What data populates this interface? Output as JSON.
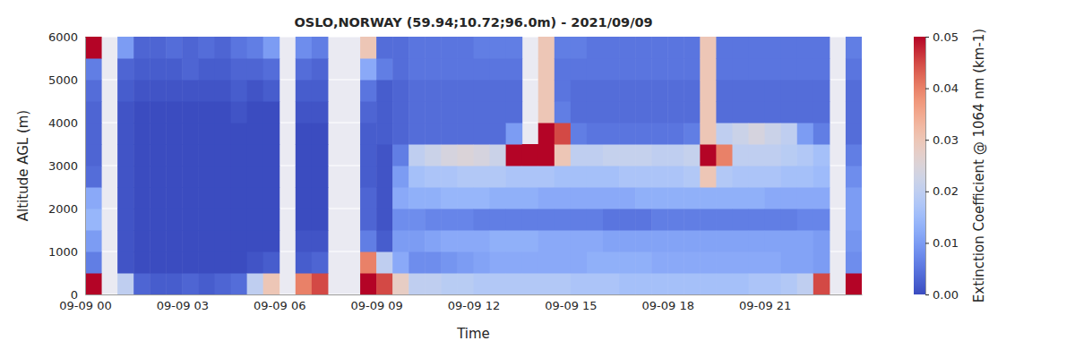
{
  "chart_data": {
    "type": "heatmap",
    "title": "OSLO,NORWAY (59.94;10.72;96.0m) - 2021/09/09",
    "x_label": "Time",
    "y_label": "Altitude AGL (m)",
    "grid": true,
    "x": [
      0,
      0.5,
      1,
      1.5,
      2,
      2.5,
      3,
      3.5,
      4,
      4.5,
      5,
      5.5,
      6,
      6.5,
      7,
      7.5,
      8,
      8.5,
      9,
      9.5,
      10,
      10.5,
      11,
      11.5,
      12,
      12.5,
      13,
      13.5,
      14,
      14.5,
      15,
      15.5,
      16,
      16.5,
      17,
      17.5,
      18,
      18.5,
      19,
      19.5,
      20,
      20.5,
      21,
      21.5,
      22,
      22.5,
      23,
      23.5
    ],
    "y": [
      0,
      500,
      1000,
      1500,
      2000,
      2500,
      3000,
      3500,
      4000,
      4500,
      5000,
      5500
    ],
    "xlim": [
      0,
      24
    ],
    "xticks": [
      {
        "value": 0,
        "label": "09-09 00"
      },
      {
        "value": 3,
        "label": "09-09 03"
      },
      {
        "value": 6,
        "label": "09-09 06"
      },
      {
        "value": 9,
        "label": "09-09 09"
      },
      {
        "value": 12,
        "label": "09-09 12"
      },
      {
        "value": 15,
        "label": "09-09 15"
      },
      {
        "value": 18,
        "label": "09-09 18"
      },
      {
        "value": 21,
        "label": "09-09 21"
      }
    ],
    "ylim": [
      0,
      6000
    ],
    "yticks": [
      0,
      1000,
      2000,
      3000,
      4000,
      5000,
      6000
    ],
    "values": [
      [
        0.05,
        0.006,
        0.01,
        0.014,
        0.012,
        0.004,
        0.003,
        0.003,
        0.003,
        0.004,
        0.006,
        0.05
      ],
      [
        null,
        null,
        null,
        null,
        null,
        null,
        null,
        null,
        null,
        null,
        null,
        null
      ],
      [
        0.02,
        0.001,
        0.001,
        0.001,
        0.001,
        0.001,
        0.001,
        0.001,
        0.001,
        0.002,
        0.003,
        0.01
      ],
      [
        0.003,
        0,
        0,
        0,
        0,
        0,
        0,
        0,
        0,
        0.001,
        0.002,
        0.003
      ],
      [
        0.002,
        0,
        0,
        0,
        0,
        0,
        0,
        0,
        0,
        0.001,
        0.002,
        0.003
      ],
      [
        0.002,
        0,
        0,
        0,
        0,
        0,
        0,
        0,
        0,
        0.001,
        0.002,
        0.004
      ],
      [
        0.003,
        0,
        0,
        0,
        0,
        0,
        0,
        0,
        0,
        0.001,
        0.003,
        0.003
      ],
      [
        0.002,
        0,
        0,
        0,
        0,
        0,
        0,
        0,
        0,
        0.001,
        0.002,
        0.004
      ],
      [
        0.003,
        0,
        0,
        0,
        0,
        0,
        0,
        0,
        0,
        0.001,
        0.002,
        0.003
      ],
      [
        0.004,
        0,
        0,
        0,
        0,
        0,
        0,
        0,
        0.001,
        0.002,
        0.003,
        0.005
      ],
      [
        0.02,
        0.001,
        0,
        0,
        0,
        0,
        0,
        0,
        0,
        0.001,
        0.003,
        0.006
      ],
      [
        0.03,
        0.002,
        0,
        0,
        0,
        0,
        0,
        0,
        0,
        0.002,
        0.004,
        0.01
      ],
      [
        null,
        null,
        null,
        null,
        null,
        null,
        null,
        null,
        null,
        null,
        null,
        null
      ],
      [
        0.04,
        0.002,
        0.001,
        0,
        0,
        0,
        0,
        0,
        0.001,
        0.002,
        0.004,
        0.008
      ],
      [
        0.045,
        0.003,
        0.001,
        0,
        0,
        0,
        0,
        0,
        0.001,
        0.002,
        0.003,
        0.006
      ],
      [
        null,
        null,
        null,
        null,
        null,
        null,
        null,
        null,
        null,
        null,
        null,
        null
      ],
      [
        null,
        null,
        null,
        null,
        null,
        null,
        null,
        null,
        null,
        null,
        null,
        null
      ],
      [
        0.05,
        0.04,
        0.006,
        0.003,
        0.003,
        0.002,
        0.002,
        0.002,
        0.003,
        0.005,
        0.012,
        0.03
      ],
      [
        0.045,
        0.02,
        0.002,
        0.001,
        0.001,
        0.001,
        0.001,
        0.002,
        0.002,
        0.002,
        0.006,
        0.004
      ],
      [
        0.028,
        0.012,
        0.01,
        0.008,
        0.012,
        0.01,
        0.006,
        0.003,
        0.003,
        0.003,
        0.004,
        0.004
      ],
      [
        0.02,
        0.008,
        0.01,
        0.008,
        0.013,
        0.016,
        0.02,
        0.004,
        0.004,
        0.004,
        0.005,
        0.005
      ],
      [
        0.02,
        0.008,
        0.011,
        0.007,
        0.013,
        0.017,
        0.022,
        0.004,
        0.004,
        0.004,
        0.005,
        0.005
      ],
      [
        0.019,
        0.009,
        0.012,
        0.007,
        0.014,
        0.017,
        0.024,
        0.004,
        0.004,
        0.004,
        0.005,
        0.005
      ],
      [
        0.019,
        0.01,
        0.012,
        0.007,
        0.014,
        0.018,
        0.025,
        0.004,
        0.004,
        0.004,
        0.005,
        0.005
      ],
      [
        0.018,
        0.011,
        0.012,
        0.006,
        0.014,
        0.018,
        0.024,
        0.004,
        0.004,
        0.004,
        0.005,
        0.006
      ],
      [
        0.018,
        0.012,
        0.013,
        0.006,
        0.013,
        0.018,
        0.022,
        0.004,
        0.004,
        0.004,
        0.005,
        0.006
      ],
      [
        0.018,
        0.012,
        0.013,
        0.006,
        0.013,
        0.017,
        0.05,
        0.01,
        0.004,
        0.004,
        0.005,
        0.006
      ],
      [
        0.018,
        0.012,
        0.013,
        0.006,
        0.013,
        0.017,
        0.05,
        null,
        null,
        null,
        null,
        null
      ],
      [
        0.018,
        0.012,
        0.012,
        0.006,
        0.012,
        0.017,
        0.05,
        0.05,
        0.03,
        0.03,
        0.03,
        0.03
      ],
      [
        0.018,
        0.012,
        0.012,
        0.006,
        0.012,
        0.016,
        0.03,
        0.045,
        0.006,
        0.005,
        0.005,
        0.006
      ],
      [
        0.017,
        0.012,
        0.012,
        0.006,
        0.012,
        0.016,
        0.02,
        0.006,
        0.004,
        0.004,
        0.005,
        0.006
      ],
      [
        0.017,
        0.013,
        0.012,
        0.006,
        0.012,
        0.016,
        0.02,
        0.005,
        0.004,
        0.004,
        0.005,
        0.005
      ],
      [
        0.017,
        0.013,
        0.011,
        0.005,
        0.012,
        0.016,
        0.021,
        0.005,
        0.004,
        0.004,
        0.005,
        0.005
      ],
      [
        0.016,
        0.013,
        0.011,
        0.005,
        0.012,
        0.017,
        0.021,
        0.005,
        0.004,
        0.004,
        0.005,
        0.005
      ],
      [
        0.016,
        0.013,
        0.011,
        0.005,
        0.013,
        0.017,
        0.021,
        0.005,
        0.004,
        0.004,
        0.005,
        0.005
      ],
      [
        0.016,
        0.012,
        0.011,
        0.006,
        0.013,
        0.017,
        0.02,
        0.005,
        0.004,
        0.004,
        0.005,
        0.005
      ],
      [
        0.016,
        0.012,
        0.011,
        0.006,
        0.013,
        0.017,
        0.02,
        0.005,
        0.004,
        0.004,
        0.005,
        0.005
      ],
      [
        0.016,
        0.012,
        0.011,
        0.006,
        0.013,
        0.018,
        0.021,
        0.006,
        0.004,
        0.004,
        0.005,
        0.005
      ],
      [
        0.016,
        0.012,
        0.011,
        0.006,
        0.013,
        0.03,
        0.05,
        0.03,
        0.03,
        0.03,
        0.03,
        0.03
      ],
      [
        0.016,
        0.012,
        0.011,
        0.006,
        0.013,
        0.018,
        0.04,
        0.02,
        0.004,
        0.004,
        0.005,
        0.005
      ],
      [
        0.016,
        0.012,
        0.011,
        0.006,
        0.013,
        0.017,
        0.02,
        0.022,
        0.004,
        0.004,
        0.005,
        0.005
      ],
      [
        0.017,
        0.012,
        0.011,
        0.006,
        0.013,
        0.017,
        0.02,
        0.024,
        0.004,
        0.004,
        0.005,
        0.005
      ],
      [
        0.017,
        0.012,
        0.011,
        0.006,
        0.012,
        0.017,
        0.02,
        0.022,
        0.004,
        0.004,
        0.005,
        0.005
      ],
      [
        0.018,
        0.011,
        0.011,
        0.006,
        0.012,
        0.016,
        0.019,
        0.02,
        0.004,
        0.004,
        0.005,
        0.005
      ],
      [
        0.02,
        0.011,
        0.011,
        0.007,
        0.012,
        0.016,
        0.018,
        0.01,
        0.004,
        0.004,
        0.005,
        0.005
      ],
      [
        0.045,
        0.01,
        0.01,
        0.007,
        0.012,
        0.015,
        0.016,
        0.006,
        0.004,
        0.004,
        0.005,
        0.005
      ],
      [
        null,
        null,
        null,
        null,
        null,
        null,
        null,
        null,
        null,
        null,
        null,
        null
      ],
      [
        0.05,
        0.008,
        0.009,
        0.01,
        0.01,
        0.008,
        0.006,
        0.004,
        0.004,
        0.004,
        0.005,
        0.006
      ]
    ],
    "colorbar": {
      "label": "Extinction Coefficient @ 1064 nm (km-1)",
      "range": [
        0,
        0.05
      ],
      "ticks": [
        {
          "value": 0,
          "label": "0.00"
        },
        {
          "value": 0.01,
          "label": "0.01"
        },
        {
          "value": 0.02,
          "label": "0.02"
        },
        {
          "value": 0.03,
          "label": "0.03"
        },
        {
          "value": 0.04,
          "label": "0.04"
        },
        {
          "value": 0.05,
          "label": "0.05"
        }
      ]
    }
  }
}
